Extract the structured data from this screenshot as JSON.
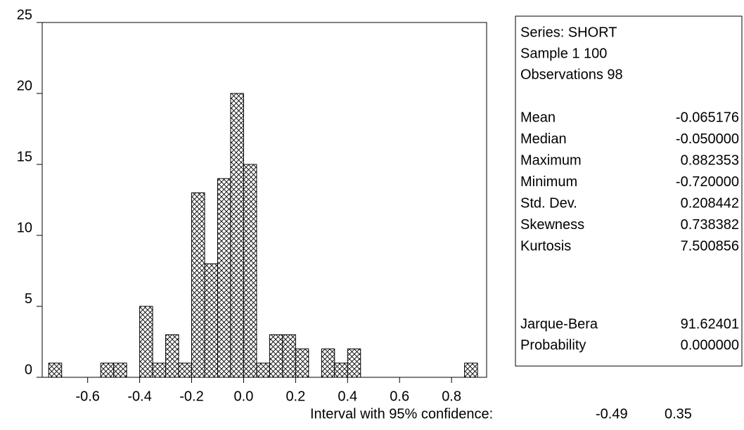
{
  "chart_data": {
    "type": "histogram",
    "bins": [
      -0.75,
      -0.7,
      -0.65,
      -0.6,
      -0.55,
      -0.5,
      -0.45,
      -0.4,
      -0.35,
      -0.3,
      -0.25,
      -0.2,
      -0.15,
      -0.1,
      -0.05,
      0.0,
      0.05,
      0.1,
      0.15,
      0.2,
      0.25,
      0.3,
      0.35,
      0.4,
      0.45,
      0.5,
      0.55,
      0.6,
      0.65,
      0.7,
      0.75,
      0.8,
      0.85,
      0.9
    ],
    "counts": [
      1,
      0,
      0,
      0,
      1,
      1,
      0,
      5,
      1,
      3,
      1,
      13,
      8,
      14,
      20,
      15,
      1,
      3,
      3,
      2,
      0,
      2,
      1,
      2,
      0,
      0,
      0,
      0,
      0,
      0,
      0,
      0,
      1
    ],
    "color": "#000000",
    "xlim": [
      -0.775,
      0.935
    ],
    "xticks": [
      -0.6,
      -0.4,
      -0.2,
      {
        "value": 0,
        "label": "0.0"
      },
      0.2,
      0.4,
      0.6,
      0.8
    ],
    "ylim": [
      0,
      25
    ],
    "yticks": [
      0,
      5,
      10,
      15,
      20,
      25
    ]
  },
  "stats": {
    "header": [
      "Series: SHORT",
      "Sample 1 100",
      "Observations 98"
    ],
    "rows": [
      [
        "Mean",
        "-0.065176"
      ],
      [
        "Median",
        "-0.050000"
      ],
      [
        "Maximum",
        "0.882353"
      ],
      [
        "Minimum",
        "-0.720000"
      ],
      [
        "Std. Dev.",
        "0.208442"
      ],
      [
        "Skewness",
        "0.738382"
      ],
      [
        "Kurtosis",
        "7.500856"
      ]
    ],
    "tests": [
      [
        "Jarque-Bera",
        "91.62401"
      ],
      [
        "Probability",
        "0.000000"
      ]
    ]
  },
  "footer": {
    "label": "Interval with 95% confidence:",
    "low": "-0.49",
    "high": "0.35"
  }
}
